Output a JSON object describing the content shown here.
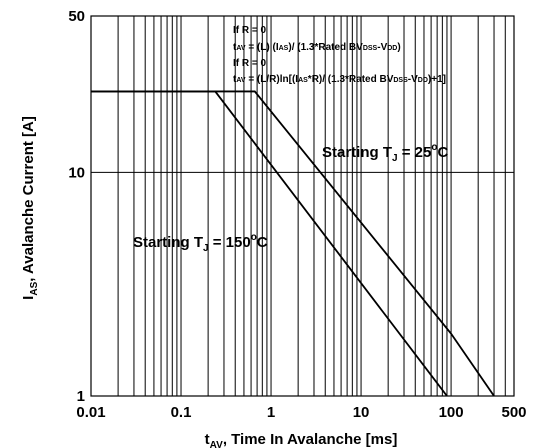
{
  "chart_data": {
    "type": "line",
    "x_scale": "log",
    "y_scale": "log",
    "xlim": [
      0.01,
      500
    ],
    "ylim": [
      1,
      50
    ],
    "x_ticks": [
      "0.01",
      "0.1",
      "1",
      "10",
      "100",
      "500"
    ],
    "y_ticks": [
      "1",
      "10",
      "50"
    ],
    "grid": true,
    "xlabel": {
      "main": "t",
      "sub": "AV",
      "rest": ", Time In Avalanche [ms]"
    },
    "ylabel": {
      "main": "I",
      "sub": "AS",
      "rest": ", Avalanche Current [A]"
    },
    "series": [
      {
        "name": {
          "main": "Starting T",
          "sub": "J",
          "mid": " = 25",
          "sup": "o",
          "end": "C"
        },
        "x": [
          0.01,
          0.66,
          100,
          300
        ],
        "y": [
          23,
          23,
          1.9,
          1
        ]
      },
      {
        "name": {
          "main": "Starting T",
          "sub": "J",
          "mid": " = 150",
          "sup": "o",
          "end": "C"
        },
        "x": [
          0.01,
          0.24,
          90
        ],
        "y": [
          23,
          23,
          1
        ]
      }
    ],
    "annotations": {
      "line1": "If R = 0",
      "line2": {
        "a": "t",
        "b": "AV",
        "c": " = (L) (I",
        "d": "AS",
        "e": ")/ (1.3*Rated BV",
        "f": "DSS",
        "g": "-V",
        "h": "DD",
        "i": ")"
      },
      "line3": "If R = 0",
      "line4": {
        "a": "t",
        "b": "AV",
        "c": " = (L/R)ln[(I",
        "d": "AS",
        "e": "*R)/ (1.3*Rated BV",
        "f": "DSS",
        "g": "-V",
        "h": "DD",
        "i": ")+1]"
      }
    }
  }
}
